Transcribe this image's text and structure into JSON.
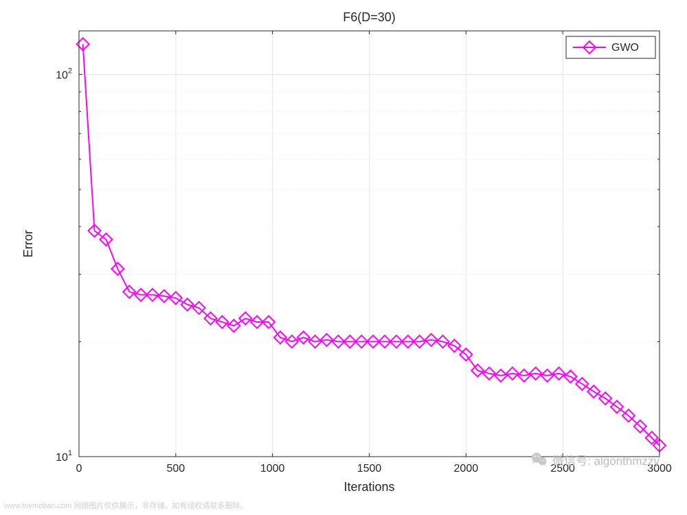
{
  "chart": {
    "type": "line",
    "title": "F6(D=30)",
    "title_fontsize": 18,
    "title_color": "#262626",
    "xlabel": "Iterations",
    "ylabel": "Error",
    "label_fontsize": 18,
    "label_color": "#262626",
    "background_color": "#ffffff",
    "axis_box_color": "#262626",
    "axis_linewidth": 1,
    "grid_color": "#e6e6e6",
    "grid_linewidth": 1,
    "tick_color": "#262626",
    "tick_fontsize": 16,
    "inner_tick_length": 5,
    "minor_tick_length": 3,
    "x_axis": {
      "scale": "linear",
      "xlim": [
        0,
        3000
      ],
      "ticks": [
        0,
        500,
        1000,
        1500,
        2000,
        2500,
        3000
      ],
      "tick_labels": [
        "0",
        "500",
        "1000",
        "1500",
        "2000",
        "2500",
        "3000"
      ]
    },
    "y_axis": {
      "scale": "log",
      "ylim": [
        10,
        130
      ],
      "major_ticks": [
        10,
        100
      ],
      "major_labels": [
        "10^1",
        "10^2"
      ],
      "minor_ticks": [
        20,
        30,
        40,
        50,
        60,
        70,
        80,
        90
      ]
    },
    "legend": {
      "position": "top-right",
      "items": [
        "GWO"
      ],
      "fontsize": 16,
      "text_color": "#262626",
      "box_color": "#262626",
      "bg_color": "#ffffff"
    },
    "series": [
      {
        "name": "GWO",
        "color": "#ff00ff",
        "linewidth": 2,
        "marker": "diamond",
        "marker_size": 9,
        "marker_edge_color": "#ff00ff",
        "marker_face_color": "none",
        "x": [
          20,
          80,
          140,
          200,
          260,
          320,
          380,
          440,
          500,
          560,
          620,
          680,
          740,
          800,
          860,
          920,
          980,
          1040,
          1100,
          1160,
          1220,
          1280,
          1340,
          1400,
          1460,
          1520,
          1580,
          1640,
          1700,
          1760,
          1820,
          1880,
          1940,
          2000,
          2060,
          2120,
          2180,
          2240,
          2300,
          2360,
          2420,
          2480,
          2540,
          2600,
          2660,
          2720,
          2780,
          2840,
          2900,
          2960,
          3000
        ],
        "y": [
          120,
          39,
          37,
          31,
          27,
          26.5,
          26.5,
          26.3,
          26,
          25,
          24.5,
          23,
          22.5,
          22,
          23,
          22.5,
          22.5,
          20.5,
          20,
          20.5,
          20,
          20.2,
          20,
          20,
          20,
          20,
          20,
          20,
          20,
          20,
          20.2,
          20,
          19.5,
          18.5,
          16.8,
          16.5,
          16.3,
          16.5,
          16.3,
          16.5,
          16.3,
          16.5,
          16.2,
          15.5,
          14.8,
          14.2,
          13.5,
          12.8,
          12.0,
          11.2,
          10.7
        ]
      }
    ]
  },
  "watermark": {
    "left_text": "www.toymoban.com 网络图片仅供展示，非存储，如有侵权请联系删除。",
    "right_text": "微信号: algorithmzzy",
    "color": "#c8c8c8"
  }
}
